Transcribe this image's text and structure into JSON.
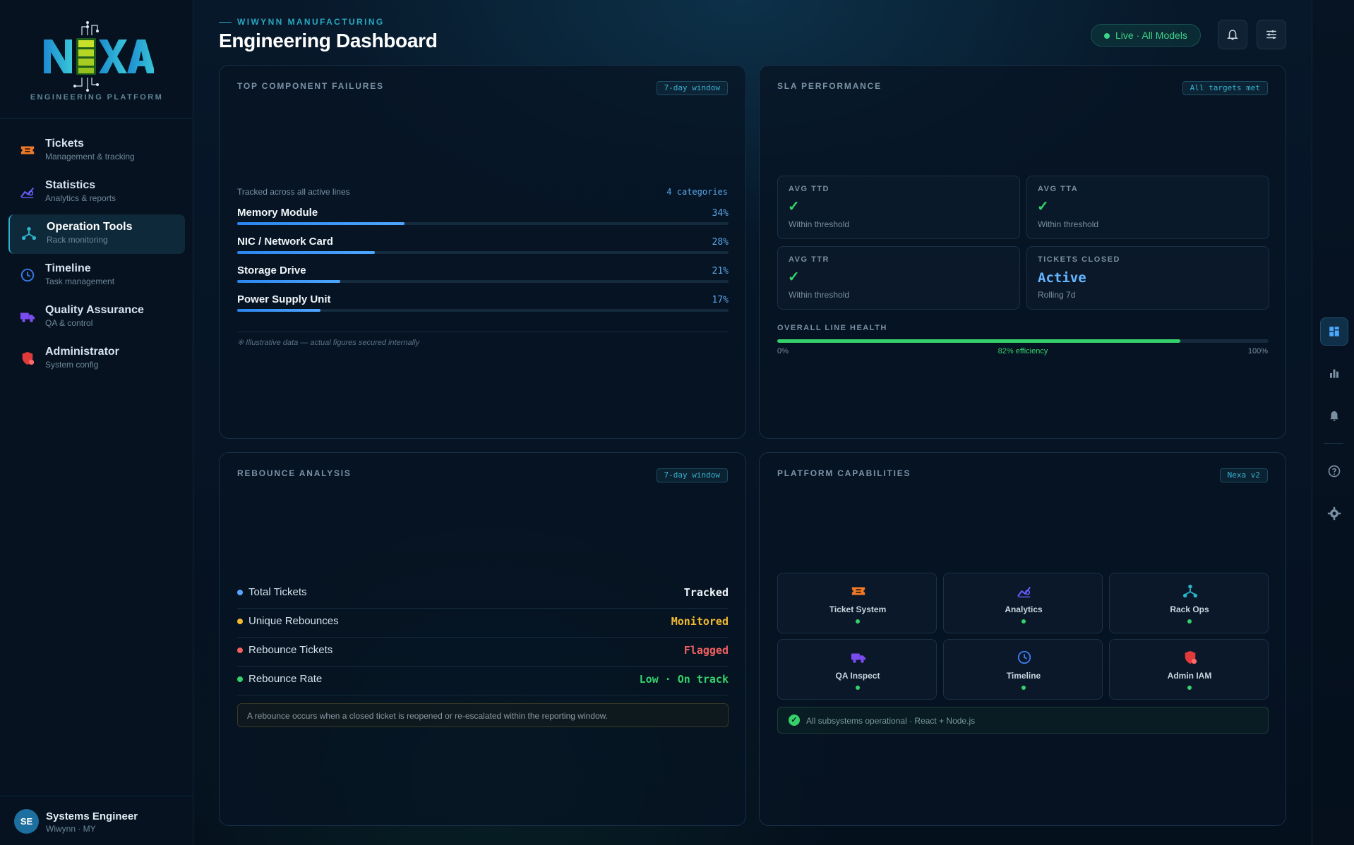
{
  "brand": {
    "logo_text": "NEXA",
    "subtitle": "ENGINEERING PLATFORM"
  },
  "sidebar": {
    "items": [
      {
        "label": "Tickets",
        "sub": "Management & tracking",
        "icon": "ticket-icon",
        "color": "#f07a2a"
      },
      {
        "label": "Statistics",
        "sub": "Analytics & reports",
        "icon": "chart-icon",
        "color": "#6a5cff"
      },
      {
        "label": "Operation Tools",
        "sub": "Rack monitoring",
        "icon": "network-icon",
        "color": "#2bb3c9"
      },
      {
        "label": "Timeline",
        "sub": "Task management",
        "icon": "clock-icon",
        "color": "#3b7cf0"
      },
      {
        "label": "Quality Assurance",
        "sub": "QA & control",
        "icon": "truck-icon",
        "color": "#7a4cf0"
      },
      {
        "label": "Administrator",
        "sub": "System config",
        "icon": "shield-icon",
        "color": "#e03a3a"
      }
    ],
    "active_index": 2
  },
  "user": {
    "initials": "SE",
    "name": "Systems Engineer",
    "sub": "Wiwynn · MY"
  },
  "header": {
    "eyebrow": "WIWYNN MANUFACTURING",
    "title": "Engineering Dashboard",
    "live": "Live · All Models"
  },
  "failures": {
    "title": "TOP COMPONENT FAILURES",
    "tag": "7-day window",
    "subtitle": "Tracked across all active lines",
    "count": "4 categories",
    "items": [
      {
        "name": "Memory Module",
        "pct_label": "34%",
        "pct": 34
      },
      {
        "name": "NIC / Network Card",
        "pct_label": "28%",
        "pct": 28
      },
      {
        "name": "Storage Drive",
        "pct_label": "21%",
        "pct": 21
      },
      {
        "name": "Power Supply Unit",
        "pct_label": "17%",
        "pct": 17
      }
    ],
    "note": "※ Illustrative data — actual figures secured internally"
  },
  "sla": {
    "title": "SLA PERFORMANCE",
    "tag": "All targets met",
    "boxes": [
      {
        "label": "AVG TTD",
        "mark": "✓",
        "status": "Within threshold"
      },
      {
        "label": "AVG TTA",
        "mark": "✓",
        "status": "Within threshold"
      },
      {
        "label": "AVG TTR",
        "mark": "✓",
        "status": "Within threshold"
      },
      {
        "label": "TICKETS CLOSED",
        "value": "Active",
        "status": "Rolling 7d"
      }
    ],
    "health_label": "OVERALL LINE HEALTH",
    "health_pct": 82,
    "health_min": "0%",
    "health_text": "82% efficiency",
    "health_max": "100%"
  },
  "rebounce": {
    "title": "REBOUNCE ANALYSIS",
    "tag": "7-day window",
    "rows": [
      {
        "label": "Total Tickets",
        "value": "Tracked",
        "color": "#5aa6ff"
      },
      {
        "label": "Unique Rebounces",
        "value": "Monitored",
        "color": "#f2b930"
      },
      {
        "label": "Rebounce Tickets",
        "value": "Flagged",
        "color": "#f06060"
      },
      {
        "label": "Rebounce Rate",
        "value": "Low · On track",
        "color": "#35d16a"
      }
    ],
    "note": "A rebounce occurs when a closed ticket is reopened or re-escalated within the reporting window."
  },
  "capabilities": {
    "title": "PLATFORM CAPABILITIES",
    "tag": "Nexa v2",
    "items": [
      {
        "label": "Ticket System",
        "icon": "ticket-icon",
        "color": "#f07a2a"
      },
      {
        "label": "Analytics",
        "icon": "chart-icon",
        "color": "#6a5cff"
      },
      {
        "label": "Rack Ops",
        "icon": "network-icon",
        "color": "#2bb3c9"
      },
      {
        "label": "QA Inspect",
        "icon": "truck-icon",
        "color": "#7a4cf0"
      },
      {
        "label": "Timeline",
        "icon": "clock-icon",
        "color": "#3b7cf0"
      },
      {
        "label": "Admin IAM",
        "icon": "shield-icon",
        "color": "#e03a3a"
      }
    ],
    "status": "All subsystems operational · React + Node.js"
  }
}
